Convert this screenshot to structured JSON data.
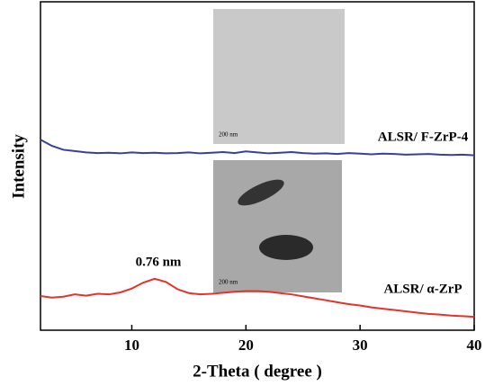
{
  "chart_data": {
    "type": "line",
    "x_label": "2-Theta ( degree )",
    "y_label": "Intensity",
    "x": [
      2,
      3,
      4,
      5,
      6,
      7,
      8,
      9,
      10,
      11,
      12,
      13,
      14,
      15,
      16,
      17,
      18,
      19,
      20,
      21,
      22,
      23,
      24,
      25,
      26,
      27,
      28,
      29,
      30,
      31,
      32,
      33,
      34,
      35,
      36,
      37,
      38,
      39,
      40
    ],
    "series": [
      {
        "name": "ALSR/ F-ZrP-4",
        "color": "#3a3f9e",
        "values": [
          58.5,
          56.6,
          55.4,
          55.0,
          54.6,
          54.4,
          54.5,
          54.3,
          54.6,
          54.4,
          54.5,
          54.3,
          54.4,
          54.6,
          54.3,
          54.5,
          54.7,
          54.4,
          54.9,
          54.6,
          54.3,
          54.5,
          54.7,
          54.4,
          54.2,
          54.3,
          54.1,
          54.4,
          54.2,
          54.0,
          54.2,
          54.1,
          53.9,
          54.0,
          54.1,
          53.9,
          53.8,
          53.9,
          53.7
        ]
      },
      {
        "name": "ALSR/ α-ZrP",
        "color": "#e8312a",
        "values": [
          10.5,
          10.0,
          10.3,
          11.0,
          10.6,
          11.2,
          11.0,
          11.6,
          12.8,
          14.6,
          15.8,
          14.8,
          12.6,
          11.4,
          11.0,
          11.2,
          11.5,
          11.8,
          12.0,
          12.0,
          11.8,
          11.4,
          11.0,
          10.4,
          9.8,
          9.2,
          8.6,
          8.0,
          7.6,
          7.0,
          6.6,
          6.2,
          5.8,
          5.4,
          5.0,
          4.8,
          4.5,
          4.3,
          4.1
        ]
      }
    ],
    "xlim": [
      2,
      40
    ],
    "xticks": [
      10,
      20,
      30,
      40
    ],
    "ylim": [
      0,
      100
    ],
    "annotations": [
      "0.76 nm"
    ],
    "insets": [
      {
        "scale": "200 nm"
      },
      {
        "scale": "200 nm"
      }
    ]
  }
}
